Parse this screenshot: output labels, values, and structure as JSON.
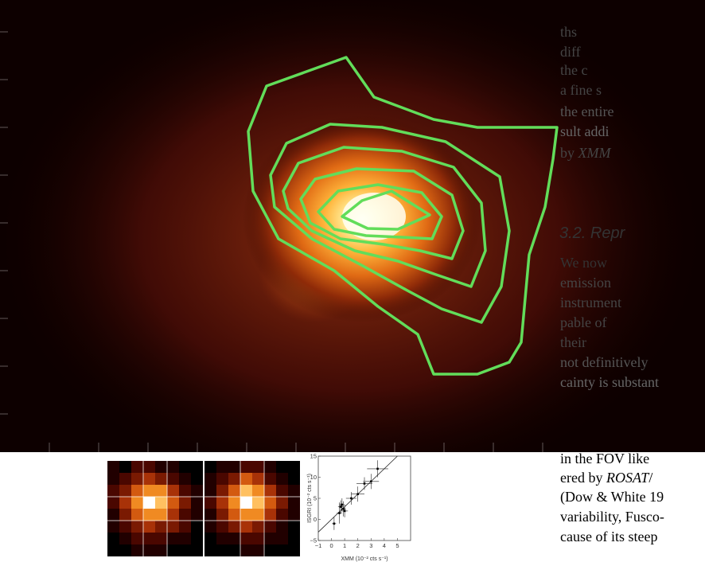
{
  "main_figure": {
    "description_icon": "xray-contour-map",
    "palette": {
      "background": "#0d0000",
      "core": "#ffffe8",
      "contour": "#62dd5a"
    }
  },
  "column_text": {
    "lines_top": [
      {
        "text": "ths"
      },
      {
        "text": "diff"
      },
      {
        "text": "the c"
      },
      {
        "text": "a fine s"
      },
      {
        "text": "the entire"
      },
      {
        "text": "sult addi"
      },
      {
        "text": "by ",
        "em": "XMM"
      }
    ],
    "section_heading": "3.2. Repr",
    "lines_bottom": [
      {
        "text": "We now"
      },
      {
        "text": "emission"
      },
      {
        "text": "instrument"
      },
      {
        "text": "pable of"
      },
      {
        "text": "their"
      },
      {
        "text": "not definitively"
      },
      {
        "text": "cainty is substant"
      },
      {
        "text": "in the FOV like"
      },
      {
        "text": "ered by ",
        "em": "ROSAT",
        "after": "/"
      },
      {
        "text": "(Dow & White 19"
      },
      {
        "text": "variability, Fusco-"
      },
      {
        "text": "cause of its steep"
      }
    ]
  },
  "inset_scatter": {
    "ylabel": "ISGRI (10⁻² cts s⁻¹)",
    "xlabel": "XMM (10⁻² cts s⁻¹)",
    "xticks": [
      "−1",
      "0",
      "1",
      "2",
      "3",
      "4",
      "5"
    ],
    "yticks": [
      "15",
      "10",
      "5",
      "0",
      "−5"
    ]
  },
  "chart_data": {
    "type": "scatter",
    "title": "",
    "xlabel": "XMM (10⁻² cts s⁻¹)",
    "ylabel": "ISGRI (10⁻² cts s⁻¹)",
    "xlim": [
      -1,
      6
    ],
    "ylim": [
      -5,
      15
    ],
    "points": [
      {
        "x": 0.2,
        "y": -1.0,
        "xerr": 0.15,
        "yerr": 1.5
      },
      {
        "x": 0.6,
        "y": 1.5,
        "xerr": 0.2,
        "yerr": 2.5
      },
      {
        "x": 0.7,
        "y": 3.0,
        "xerr": 0.2,
        "yerr": 1.5
      },
      {
        "x": 0.8,
        "y": 3.5,
        "xerr": 0.2,
        "yerr": 1.5
      },
      {
        "x": 0.9,
        "y": 2.5,
        "xerr": 0.2,
        "yerr": 1.8
      },
      {
        "x": 1.0,
        "y": 2.0,
        "xerr": 0.25,
        "yerr": 1.5
      },
      {
        "x": 1.5,
        "y": 5.0,
        "xerr": 0.4,
        "yerr": 1.5
      },
      {
        "x": 2.0,
        "y": 6.0,
        "xerr": 0.5,
        "yerr": 1.8
      },
      {
        "x": 2.5,
        "y": 8.5,
        "xerr": 0.6,
        "yerr": 1.5
      },
      {
        "x": 3.0,
        "y": 9.0,
        "xerr": 0.6,
        "yerr": 1.8
      },
      {
        "x": 3.5,
        "y": 12.0,
        "xerr": 0.8,
        "yerr": 2.0
      }
    ],
    "fit_line": {
      "slope": 3.0,
      "intercept": 0.0
    }
  }
}
